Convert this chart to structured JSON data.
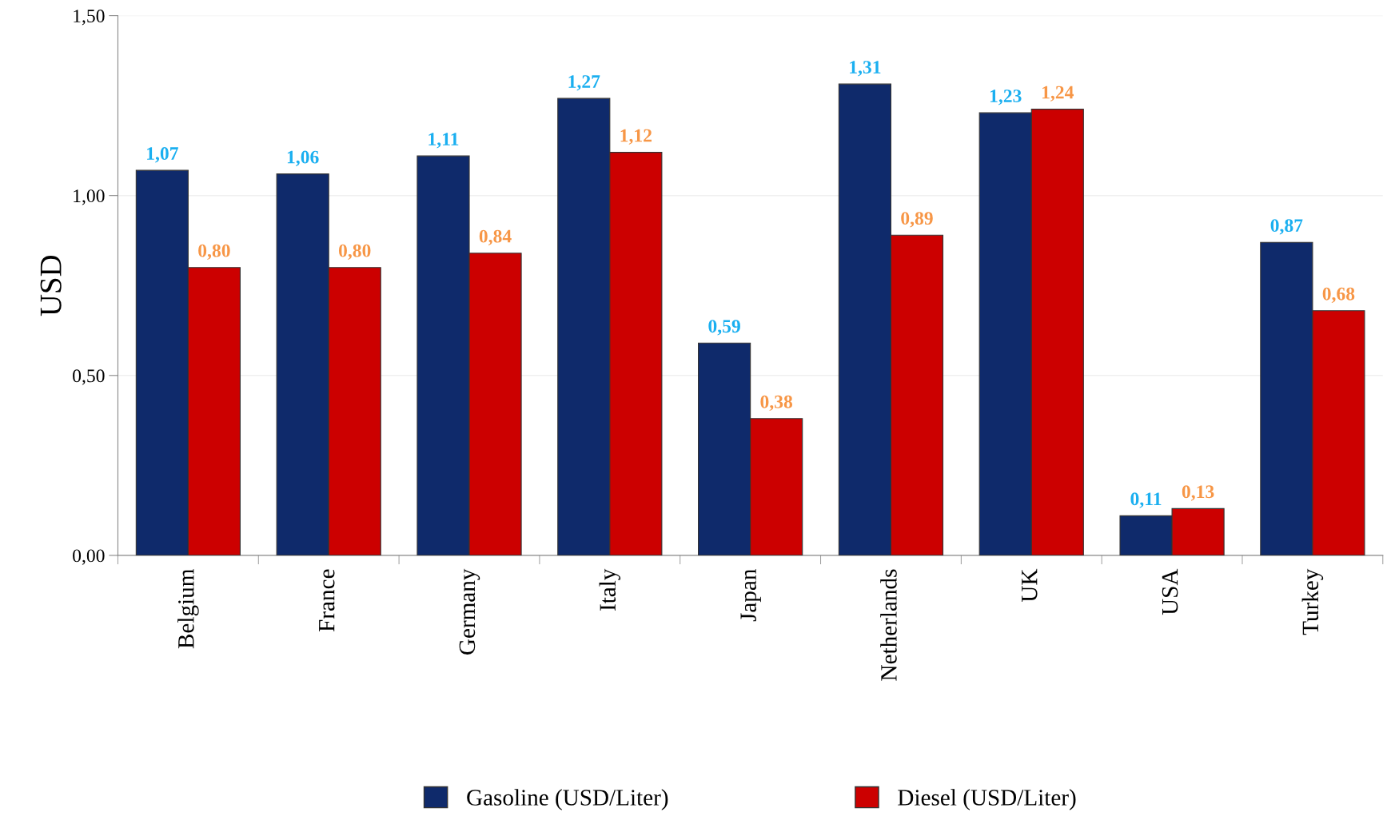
{
  "chart_data": {
    "type": "bar",
    "ylabel": "USD",
    "categories": [
      "Belgium",
      "France",
      "Germany",
      "Italy",
      "Japan",
      "Netherlands",
      "UK",
      "USA",
      "Turkey"
    ],
    "series": [
      {
        "name": "Gasoline (USD/Liter)",
        "color": "#0f2a6b",
        "values": [
          1.07,
          1.06,
          1.11,
          1.27,
          0.59,
          1.31,
          1.23,
          0.11,
          0.87
        ],
        "value_labels": [
          "1,07",
          "1,06",
          "1,11",
          "1,27",
          "0,59",
          "1,31",
          "1,23",
          "0,11",
          "0,87"
        ]
      },
      {
        "name": "Diesel (USD/Liter)",
        "color": "#cc0000",
        "values": [
          0.8,
          0.8,
          0.84,
          1.12,
          0.38,
          0.89,
          1.24,
          0.13,
          0.68
        ],
        "value_labels": [
          "0,80",
          "0,80",
          "0,84",
          "1,12",
          "0,38",
          "0,89",
          "1,24",
          "0,13",
          "0,68"
        ]
      }
    ],
    "ylim": [
      0,
      1.5
    ],
    "yticks": [
      {
        "value": 0,
        "label": "0,00"
      },
      {
        "value": 0.5,
        "label": "0,50"
      },
      {
        "value": 1.0,
        "label": "1,00"
      },
      {
        "value": 1.5,
        "label": "1,50"
      }
    ],
    "grid": "y",
    "legend": "bottom"
  }
}
